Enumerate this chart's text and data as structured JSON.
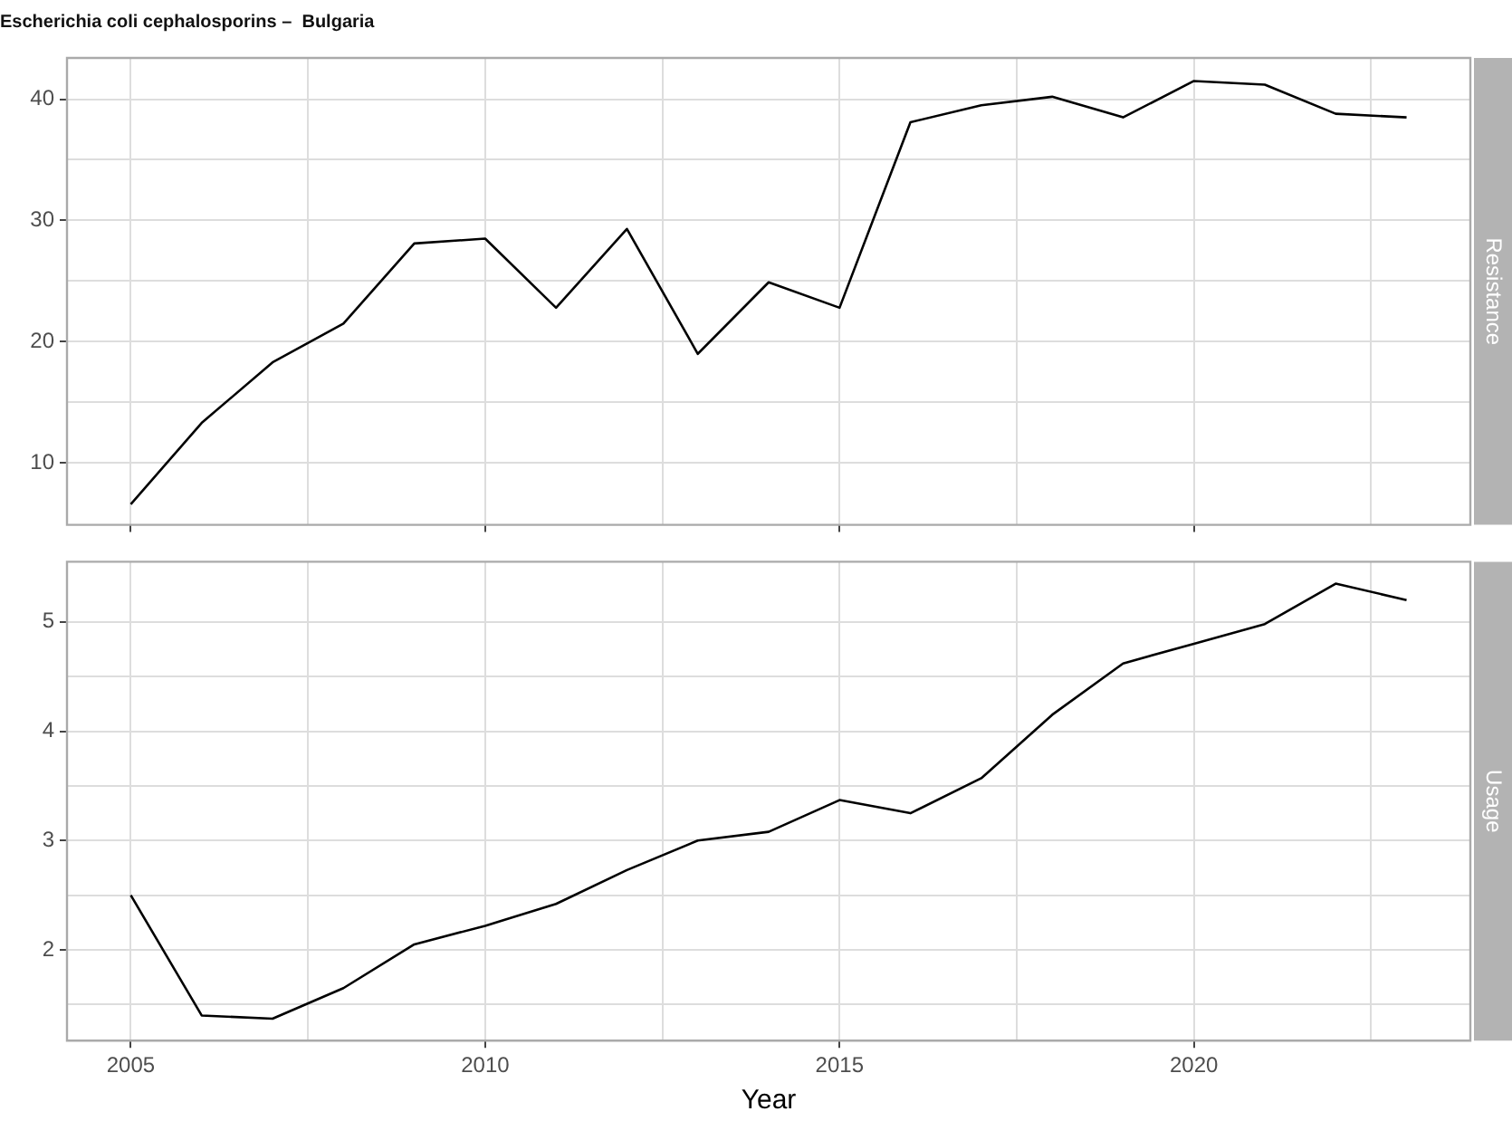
{
  "chart_data": [
    {
      "type": "line",
      "title": "Escherichia coli cephalosporins –  Bulgaria",
      "ylabel": "Resistance",
      "x": [
        2005,
        2006,
        2007,
        2008,
        2009,
        2010,
        2011,
        2012,
        2013,
        2014,
        2015,
        2016,
        2017,
        2018,
        2019,
        2020,
        2021,
        2022,
        2023
      ],
      "series": [
        {
          "color": "#000000",
          "values": [
            6.6,
            13.3,
            18.3,
            21.5,
            28.1,
            28.5,
            22.8,
            29.3,
            19.0,
            24.9,
            22.8,
            38.1,
            39.5,
            40.2,
            38.5,
            41.5,
            41.2,
            38.8,
            38.5
          ]
        }
      ],
      "xlim": [
        2004.1,
        2023.9
      ],
      "xticks": [
        2005,
        {
          "value": 2007.5,
          "label": null
        },
        2010,
        {
          "value": 2012.5,
          "label": null
        },
        2015,
        {
          "value": 2017.5,
          "label": null
        },
        2020,
        {
          "value": 2022.5,
          "label": null
        }
      ],
      "ylim": [
        4.9,
        43.4
      ],
      "yticks": [
        10,
        {
          "value": 15,
          "label": null
        },
        20,
        {
          "value": 25,
          "label": null
        },
        30,
        {
          "value": 35,
          "label": null
        },
        40
      ],
      "tick_labels": "y",
      "grid": true,
      "marker": "none",
      "line_style": "solid"
    },
    {
      "type": "line",
      "xlabel": "Year",
      "ylabel": "Usage",
      "x": [
        2005,
        2006,
        2007,
        2008,
        2009,
        2010,
        2011,
        2012,
        2013,
        2014,
        2015,
        2016,
        2017,
        2018,
        2019,
        2020,
        2021,
        2022,
        2023
      ],
      "series": [
        {
          "color": "#000000",
          "values": [
            2.5,
            1.4,
            1.37,
            1.65,
            2.05,
            2.22,
            2.42,
            2.73,
            3.0,
            3.08,
            3.37,
            3.25,
            3.57,
            4.15,
            4.62,
            4.8,
            4.98,
            5.35,
            5.2
          ]
        }
      ],
      "xlim": [
        2004.1,
        2023.9
      ],
      "xticks": [
        2005,
        {
          "value": 2007.5,
          "label": null
        },
        2010,
        {
          "value": 2012.5,
          "label": null
        },
        2015,
        {
          "value": 2017.5,
          "label": null
        },
        2020,
        {
          "value": 2022.5,
          "label": null
        }
      ],
      "ylim": [
        1.17,
        5.55
      ],
      "yticks": [
        {
          "value": 1.5,
          "label": null
        },
        2,
        {
          "value": 2.5,
          "label": null
        },
        3,
        {
          "value": 3.5,
          "label": null
        },
        4,
        {
          "value": 4.5,
          "label": null
        },
        5
      ],
      "grid": true,
      "marker": "none",
      "line_style": "solid"
    }
  ]
}
